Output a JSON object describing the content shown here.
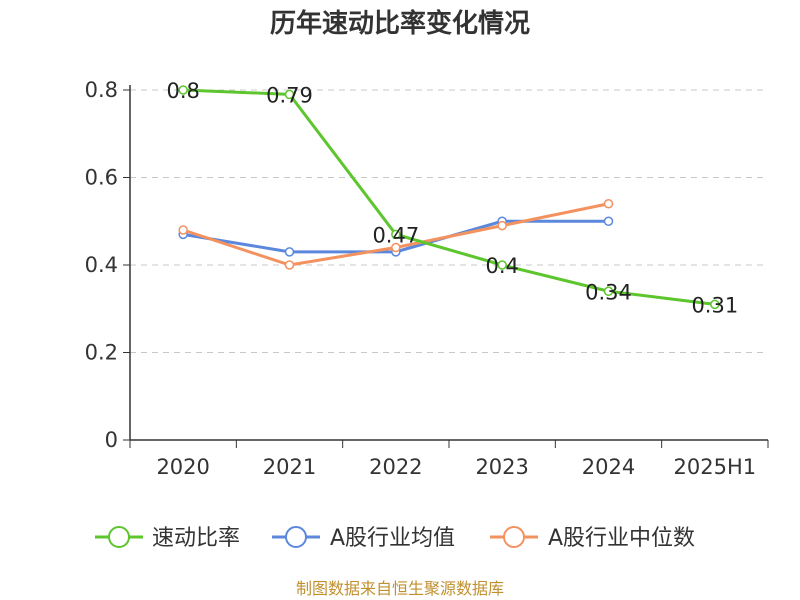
{
  "chart_data": {
    "type": "line",
    "title": "历年速动比率变化情况",
    "categories": [
      "2020",
      "2021",
      "2022",
      "2023",
      "2024",
      "2025H1"
    ],
    "ylim": [
      0,
      0.8
    ],
    "yticks": [
      "0",
      "0.2",
      "0.4",
      "0.6",
      "0.8"
    ],
    "grid": true,
    "legend_position": "bottom",
    "series": [
      {
        "name": "速动比率",
        "color": "#5dc52e",
        "values": [
          0.8,
          0.79,
          0.47,
          0.4,
          0.34,
          0.31
        ],
        "labels": [
          "0.8",
          "0.79",
          "0.47",
          "0.4",
          "0.34",
          "0.31"
        ]
      },
      {
        "name": "A股行业均值",
        "color": "#5b88dd",
        "values": [
          0.47,
          0.43,
          0.43,
          0.5,
          0.5,
          null
        ]
      },
      {
        "name": "A股行业中位数",
        "color": "#f3925f",
        "values": [
          0.48,
          0.4,
          0.44,
          0.49,
          0.54,
          null
        ]
      }
    ]
  },
  "footer": {
    "source": "制图数据来自恒生聚源数据库"
  }
}
